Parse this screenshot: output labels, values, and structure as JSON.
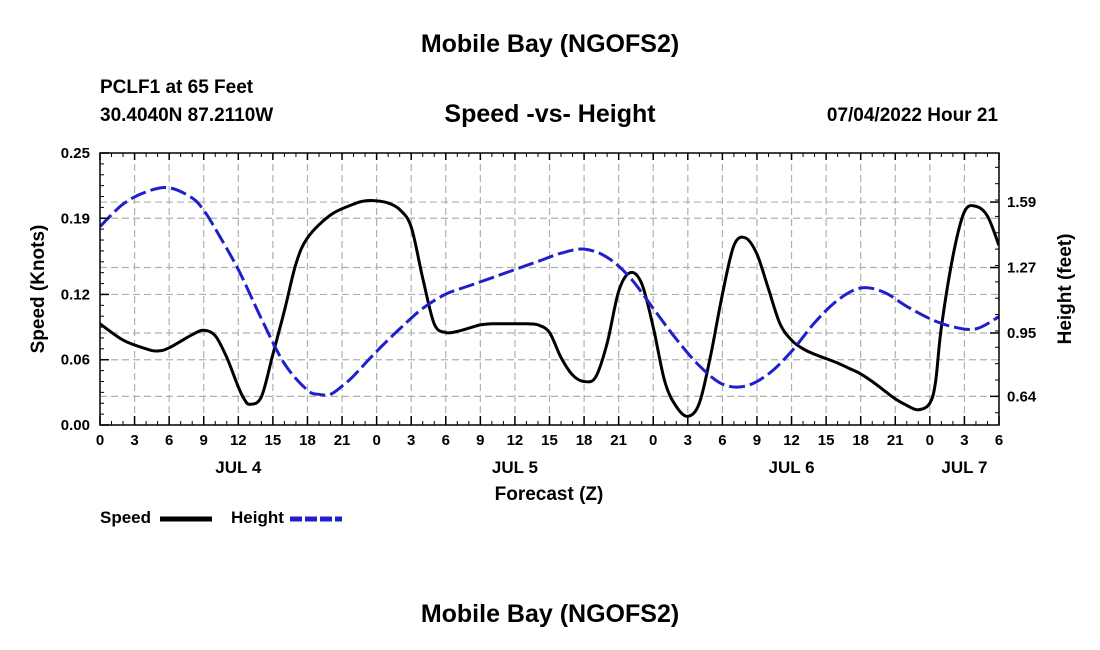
{
  "header": {
    "title": "Mobile Bay (NGOFS2)",
    "station": "PCLF1 at 65 Feet",
    "coordinates": "30.4040N  87.2110W",
    "plot_title": "Speed -vs- Height",
    "run_time": "07/04/2022 Hour 21"
  },
  "footer": {
    "title": "Mobile Bay (NGOFS2)"
  },
  "legend": {
    "speed_label": "Speed",
    "height_label": "Height"
  },
  "colors": {
    "speed": "#000000",
    "height": "#1f1fcc",
    "grid": "#b0b0b0"
  },
  "chart_data": {
    "type": "line",
    "title": "Speed -vs- Height",
    "xlabel": "Forecast (Z)",
    "ylabel": "Speed (Knots)",
    "y2label": "Height (feet)",
    "x_unit": "hours since 07/04/2022 00Z",
    "xlim": [
      0,
      78
    ],
    "ylim": [
      0,
      0.25
    ],
    "y2lim": [
      0.5,
      1.83
    ],
    "x_ticks": [
      0,
      3,
      6,
      9,
      12,
      15,
      18,
      21,
      24,
      27,
      30,
      33,
      36,
      39,
      42,
      45,
      48,
      51,
      54,
      57,
      60,
      63,
      66,
      69,
      72,
      75,
      78
    ],
    "x_tick_labels": [
      "0",
      "3",
      "6",
      "9",
      "12",
      "15",
      "18",
      "21",
      "0",
      "3",
      "6",
      "9",
      "12",
      "15",
      "18",
      "21",
      "0",
      "3",
      "6",
      "9",
      "12",
      "15",
      "18",
      "21",
      "0",
      "3",
      "6"
    ],
    "date_labels": [
      {
        "x": 12,
        "label": "JUL 4"
      },
      {
        "x": 36,
        "label": "JUL 5"
      },
      {
        "x": 60,
        "label": "JUL 6"
      },
      {
        "x": 75,
        "label": "JUL 7"
      }
    ],
    "y_ticks": [
      0,
      0.06,
      0.12,
      0.19,
      0.25
    ],
    "y_tick_labels": [
      "0.00",
      "0.06",
      "0.12",
      "0.19",
      "0.25"
    ],
    "y2_ticks": [
      0.64,
      0.95,
      1.27,
      1.59
    ],
    "y2_tick_labels": [
      "0.64",
      "0.95",
      "1.27",
      "1.59"
    ],
    "grid": true,
    "legend_position": "bottom-left",
    "series": [
      {
        "name": "Speed",
        "axis": "left",
        "style": "solid",
        "x": [
          0,
          2,
          4,
          5,
          6,
          8,
          9,
          10,
          11,
          12,
          12.5,
          13,
          14,
          15,
          16,
          17,
          18,
          20,
          22,
          23,
          24,
          25,
          26,
          27,
          28,
          29,
          30,
          31,
          32,
          33,
          34,
          35,
          36,
          37,
          38,
          39,
          40,
          41,
          42,
          43,
          44,
          45,
          46,
          47,
          48,
          49,
          50,
          51,
          52,
          53,
          54,
          55,
          56,
          57,
          58,
          59,
          60,
          61,
          62,
          63,
          64,
          65,
          66,
          67,
          68,
          69,
          70,
          71,
          72,
          72.5,
          73,
          74,
          75,
          76,
          77,
          78
        ],
        "y": [
          0.093,
          0.078,
          0.07,
          0.068,
          0.071,
          0.083,
          0.087,
          0.082,
          0.062,
          0.035,
          0.024,
          0.019,
          0.026,
          0.065,
          0.105,
          0.148,
          0.172,
          0.193,
          0.203,
          0.206,
          0.206,
          0.204,
          0.198,
          0.182,
          0.135,
          0.093,
          0.085,
          0.086,
          0.089,
          0.092,
          0.093,
          0.093,
          0.093,
          0.093,
          0.092,
          0.085,
          0.062,
          0.046,
          0.04,
          0.044,
          0.075,
          0.123,
          0.14,
          0.13,
          0.09,
          0.04,
          0.017,
          0.008,
          0.02,
          0.065,
          0.12,
          0.165,
          0.172,
          0.157,
          0.125,
          0.093,
          0.078,
          0.07,
          0.065,
          0.061,
          0.057,
          0.052,
          0.047,
          0.04,
          0.032,
          0.024,
          0.018,
          0.014,
          0.02,
          0.04,
          0.09,
          0.155,
          0.196,
          0.201,
          0.192,
          0.165
        ]
      },
      {
        "name": "Height",
        "axis": "right",
        "style": "dashed",
        "x": [
          0,
          2,
          4,
          6,
          8,
          9,
          10,
          12,
          14,
          16,
          18,
          19,
          20,
          21,
          22,
          24,
          26,
          28,
          30,
          32,
          34,
          36,
          38,
          40,
          42,
          44,
          46,
          48,
          50,
          52,
          54,
          56,
          58,
          60,
          62,
          64,
          66,
          68,
          70,
          72,
          74,
          76,
          78
        ],
        "y": [
          1.47,
          1.58,
          1.64,
          1.66,
          1.61,
          1.55,
          1.46,
          1.26,
          1.02,
          0.8,
          0.67,
          0.65,
          0.65,
          0.69,
          0.74,
          0.86,
          0.97,
          1.07,
          1.14,
          1.18,
          1.22,
          1.26,
          1.3,
          1.34,
          1.36,
          1.32,
          1.22,
          1.07,
          0.92,
          0.79,
          0.7,
          0.69,
          0.75,
          0.86,
          1.0,
          1.11,
          1.17,
          1.15,
          1.08,
          1.02,
          0.98,
          0.97,
          1.03
        ]
      }
    ]
  }
}
